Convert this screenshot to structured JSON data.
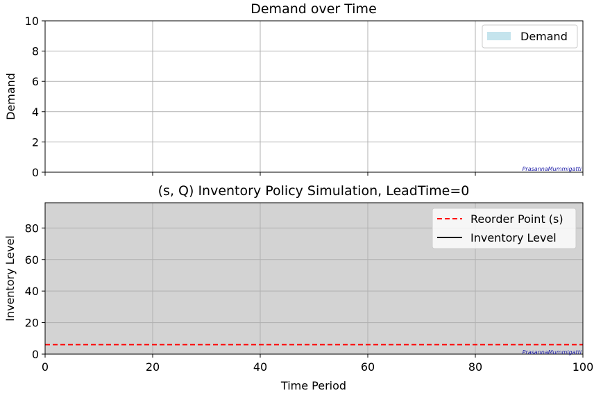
{
  "chart_data": [
    {
      "type": "bar",
      "title": "Demand over Time",
      "xlabel": "",
      "ylabel": "Demand",
      "xlim": [
        0,
        100
      ],
      "ylim": [
        0,
        10
      ],
      "yticks": [
        0,
        2,
        4,
        6,
        8,
        10
      ],
      "xticks": [
        0,
        20,
        40,
        60,
        80,
        100
      ],
      "show_xtick_labels": false,
      "grid": true,
      "legend_position": "top-right",
      "background": "#ffffff",
      "series": [
        {
          "name": "Demand",
          "color": "#add8e6",
          "opacity": 0.7,
          "values": []
        }
      ],
      "watermark": "PrasannaMummigatti"
    },
    {
      "type": "line",
      "title": "(s, Q) Inventory Policy Simulation, LeadTime=0",
      "xlabel": "Time Period",
      "ylabel": "Inventory Level",
      "xlim": [
        0,
        100
      ],
      "ylim": [
        0,
        96
      ],
      "yticks": [
        0,
        20,
        40,
        60,
        80
      ],
      "xticks": [
        0,
        20,
        40,
        60,
        80,
        100
      ],
      "show_xtick_labels": true,
      "grid": true,
      "legend_position": "top-right",
      "background": "#d3d3d3",
      "series": [
        {
          "name": "Reorder Point (s)",
          "color": "#ff0000",
          "style": "dashed",
          "constant": 6
        },
        {
          "name": "Inventory Level",
          "color": "#000000",
          "style": "solid",
          "x": [],
          "y": []
        }
      ],
      "watermark": "PrasannaMummigatti"
    }
  ]
}
